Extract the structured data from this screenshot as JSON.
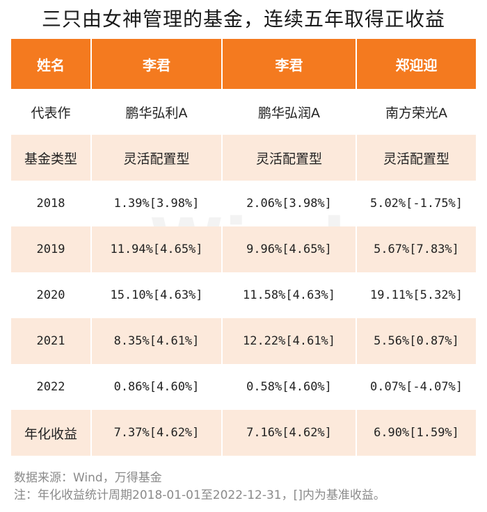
{
  "title": "三只由女神管理的基金，连续五年取得正收益",
  "watermark": "Wind",
  "table": {
    "headers": [
      "姓名",
      "李君",
      "李君",
      "郑迎迎"
    ],
    "rows": [
      [
        "代表作",
        "鹏华弘利A",
        "鹏华弘润A",
        "南方荣光A"
      ],
      [
        "基金类型",
        "灵活配置型",
        "灵活配置型",
        "灵活配置型"
      ],
      [
        "2018",
        "1.39%[3.98%]",
        "2.06%[3.98%]",
        "5.02%[-1.75%]"
      ],
      [
        "2019",
        "11.94%[4.65%]",
        "9.96%[4.65%]",
        "5.67%[7.83%]"
      ],
      [
        "2020",
        "15.10%[4.63%]",
        "11.58%[4.63%]",
        "19.11%[5.32%]"
      ],
      [
        "2021",
        "8.35%[4.61%]",
        "12.22%[4.61%]",
        "5.56%[0.87%]"
      ],
      [
        "2022",
        "0.86%[4.60%]",
        "0.58%[4.60%]",
        "0.07%[-4.07%]"
      ],
      [
        "年化收益",
        "7.37%[4.62%]",
        "7.16%[4.62%]",
        "6.90%[1.59%]"
      ]
    ]
  },
  "notes": {
    "source": "数据来源：Wind，万得基金",
    "footnote": "注：年化收益统计周期2018-01-01至2022-12-31，[]内为基准收益。"
  },
  "colors": {
    "header_bg": "#f47a1f",
    "header_text": "#ffffff",
    "shaded_row": "#fce9db",
    "note_text": "#8a8a8a"
  }
}
